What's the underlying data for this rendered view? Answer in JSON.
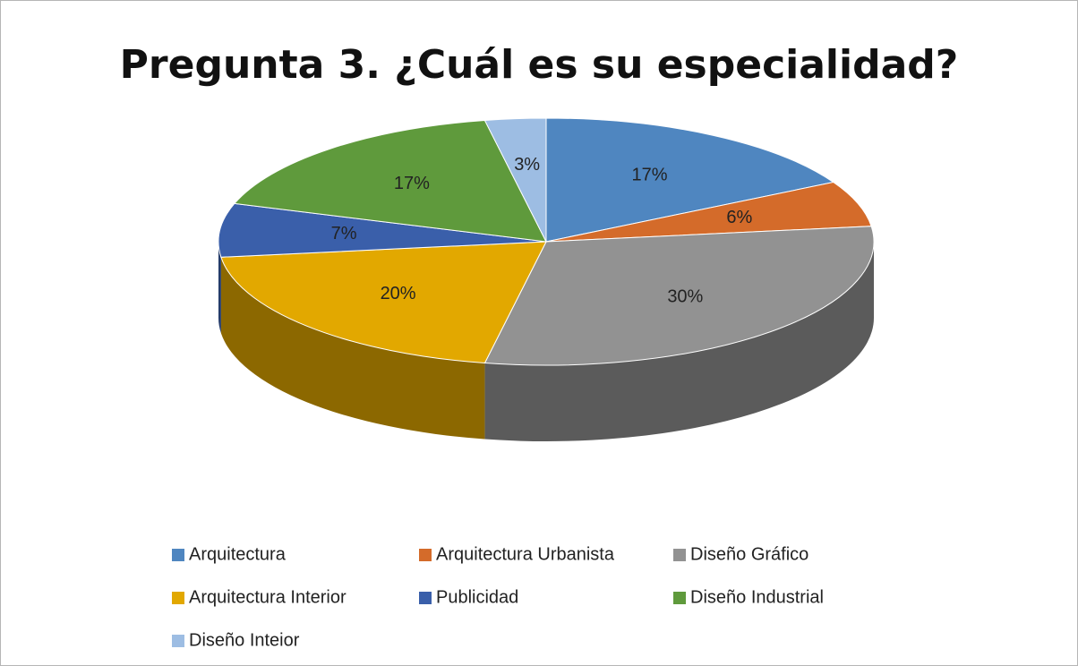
{
  "chart_data": {
    "type": "pie",
    "title": "Pregunta 3. ¿Cuál es su especialidad?",
    "categories": [
      "Arquitectura",
      "Arquitectura Urbanista",
      "Diseño Gráfico",
      "Arquitectura Interior",
      "Publicidad",
      "Diseño Industrial",
      "Diseño Inteior"
    ],
    "values": [
      17,
      6,
      30,
      20,
      7,
      17,
      3
    ],
    "value_labels": [
      "17%",
      "6%",
      "30%",
      "20%",
      "7%",
      "17%",
      "3%"
    ],
    "colors": [
      "#4f86c0",
      "#d46b2a",
      "#929292",
      "#e2a800",
      "#3a5faa",
      "#5f9a3c",
      "#9dbde3"
    ],
    "legend": "bottom"
  }
}
